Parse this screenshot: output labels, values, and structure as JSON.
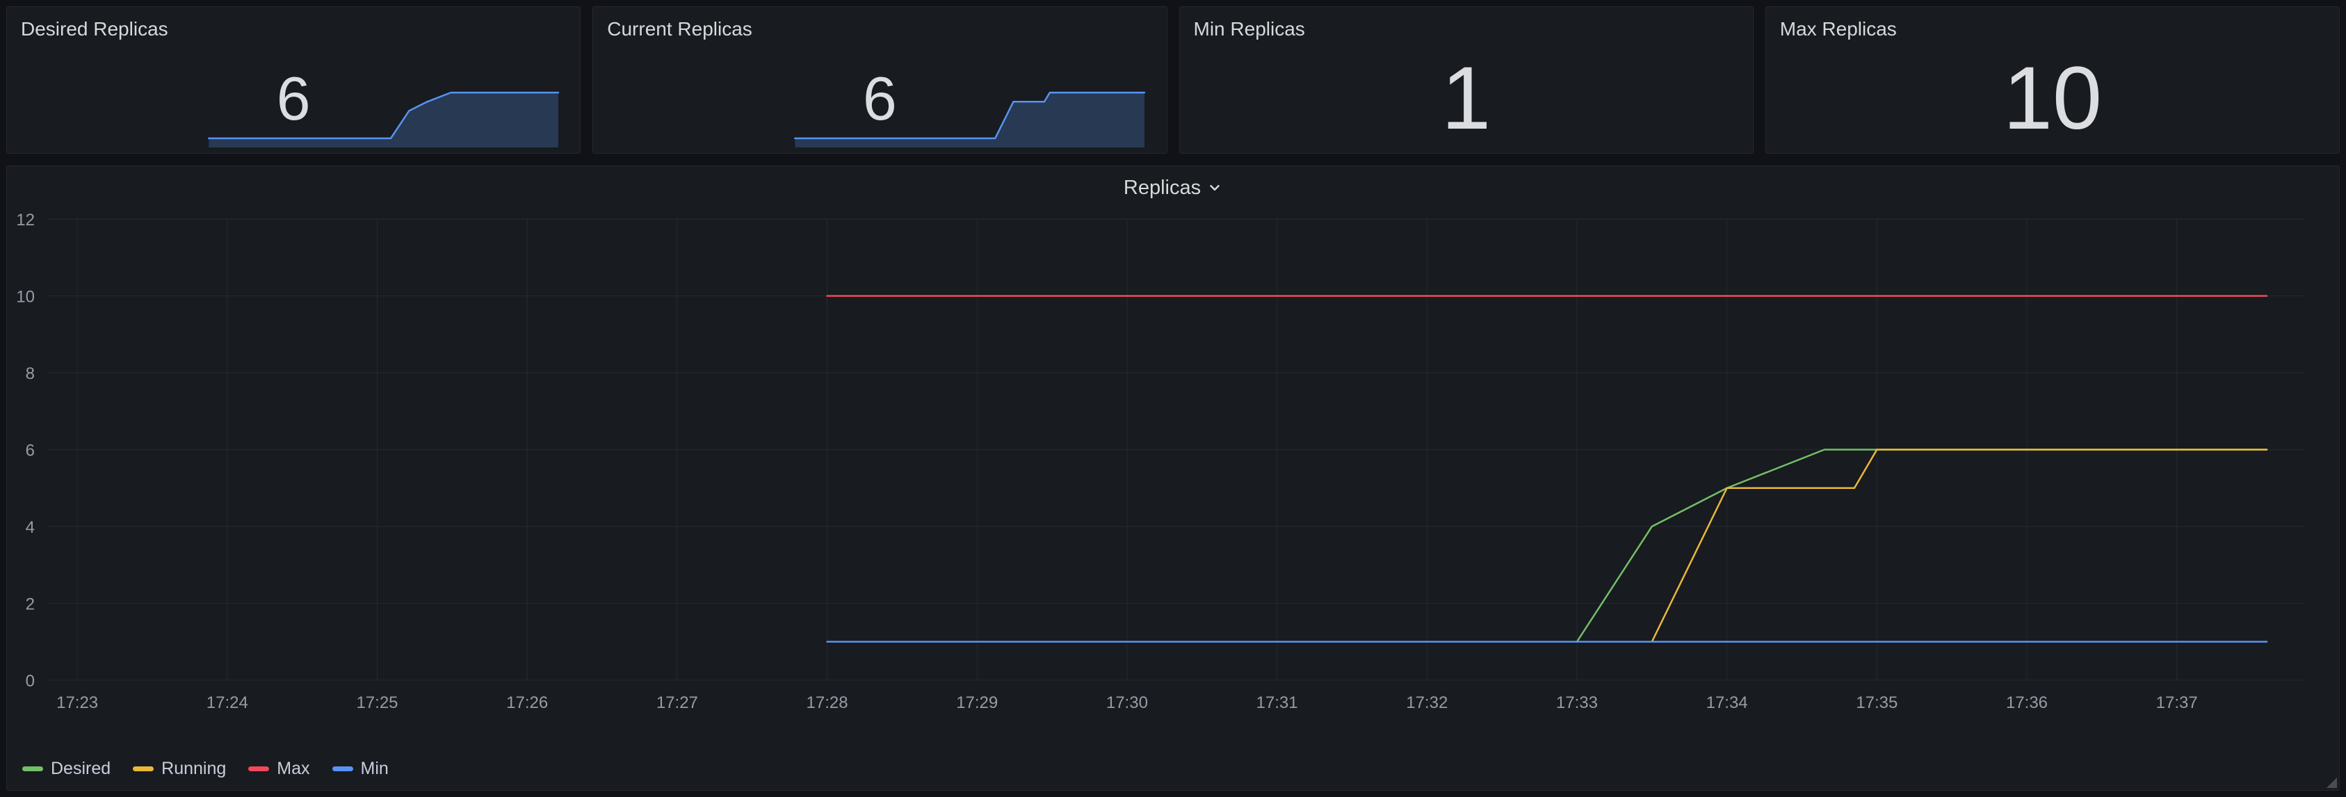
{
  "theme": {
    "page_bg": "#111217",
    "panel_bg": "#181b1f",
    "panel_border": "#25272e",
    "grid_color": "rgba(204,204,220,0.08)",
    "text_color": "#d8d9da"
  },
  "chart_data": [
    {
      "type": "area",
      "title": "Desired Replicas",
      "value": "6",
      "spark": {
        "xlim": [
          22.8,
          37.85
        ],
        "ylim": [
          0,
          7
        ],
        "series": [
          {
            "name": "Desired Replicas",
            "color": "#5794f2",
            "fill": "rgba(87,148,242,0.25)",
            "width": 2.5,
            "points": [
              [
                28,
                1
              ],
              [
                33,
                1
              ],
              [
                33.5,
                4
              ],
              [
                34,
                5
              ],
              [
                34.65,
                6
              ],
              [
                37.6,
                6
              ]
            ]
          }
        ]
      }
    },
    {
      "type": "area",
      "title": "Current Replicas",
      "value": "6",
      "spark": {
        "xlim": [
          22.8,
          37.85
        ],
        "ylim": [
          0,
          7
        ],
        "series": [
          {
            "name": "Current Replicas",
            "color": "#5794f2",
            "fill": "rgba(87,148,242,0.25)",
            "width": 2.5,
            "points": [
              [
                28,
                1
              ],
              [
                33.5,
                1
              ],
              [
                34,
                5
              ],
              [
                34.85,
                5
              ],
              [
                35,
                6
              ],
              [
                37.6,
                6
              ]
            ]
          }
        ]
      }
    },
    {
      "type": "stat",
      "title": "Min Replicas",
      "value": "1"
    },
    {
      "type": "stat",
      "title": "Max Replicas",
      "value": "10"
    },
    {
      "type": "line",
      "title": "Replicas",
      "xlim": [
        22.8,
        37.85
      ],
      "ylim": [
        0,
        12
      ],
      "y_ticks": [
        {
          "v": 0,
          "label": "0"
        },
        {
          "v": 2,
          "label": "2"
        },
        {
          "v": 4,
          "label": "4"
        },
        {
          "v": 6,
          "label": "6"
        },
        {
          "v": 8,
          "label": "8"
        },
        {
          "v": 10,
          "label": "10"
        },
        {
          "v": 12,
          "label": "12"
        }
      ],
      "x_ticks": [
        {
          "v": 23,
          "label": "17:23"
        },
        {
          "v": 24,
          "label": "17:24"
        },
        {
          "v": 25,
          "label": "17:25"
        },
        {
          "v": 26,
          "label": "17:26"
        },
        {
          "v": 27,
          "label": "17:27"
        },
        {
          "v": 28,
          "label": "17:28"
        },
        {
          "v": 29,
          "label": "17:29"
        },
        {
          "v": 30,
          "label": "17:30"
        },
        {
          "v": 31,
          "label": "17:31"
        },
        {
          "v": 32,
          "label": "17:32"
        },
        {
          "v": 33,
          "label": "17:33"
        },
        {
          "v": 34,
          "label": "17:34"
        },
        {
          "v": 35,
          "label": "17:35"
        },
        {
          "v": 36,
          "label": "17:36"
        },
        {
          "v": 37,
          "label": "17:37"
        }
      ],
      "series": [
        {
          "name": "Desired",
          "color": "#73bf69",
          "width": 2.5,
          "points": [
            [
              33,
              1
            ],
            [
              33.5,
              4
            ],
            [
              34,
              5
            ],
            [
              34.65,
              6
            ],
            [
              37.6,
              6
            ]
          ]
        },
        {
          "name": "Running",
          "color": "#eab839",
          "width": 2.5,
          "points": [
            [
              33.5,
              1
            ],
            [
              34,
              5
            ],
            [
              34.85,
              5
            ],
            [
              35,
              6
            ],
            [
              37.6,
              6
            ]
          ]
        },
        {
          "name": "Max",
          "color": "#f2495c",
          "width": 2.5,
          "points": [
            [
              28,
              10
            ],
            [
              37.6,
              10
            ]
          ]
        },
        {
          "name": "Min",
          "color": "#5794f2",
          "width": 2.5,
          "points": [
            [
              28,
              1
            ],
            [
              37.6,
              1
            ]
          ]
        }
      ]
    }
  ]
}
